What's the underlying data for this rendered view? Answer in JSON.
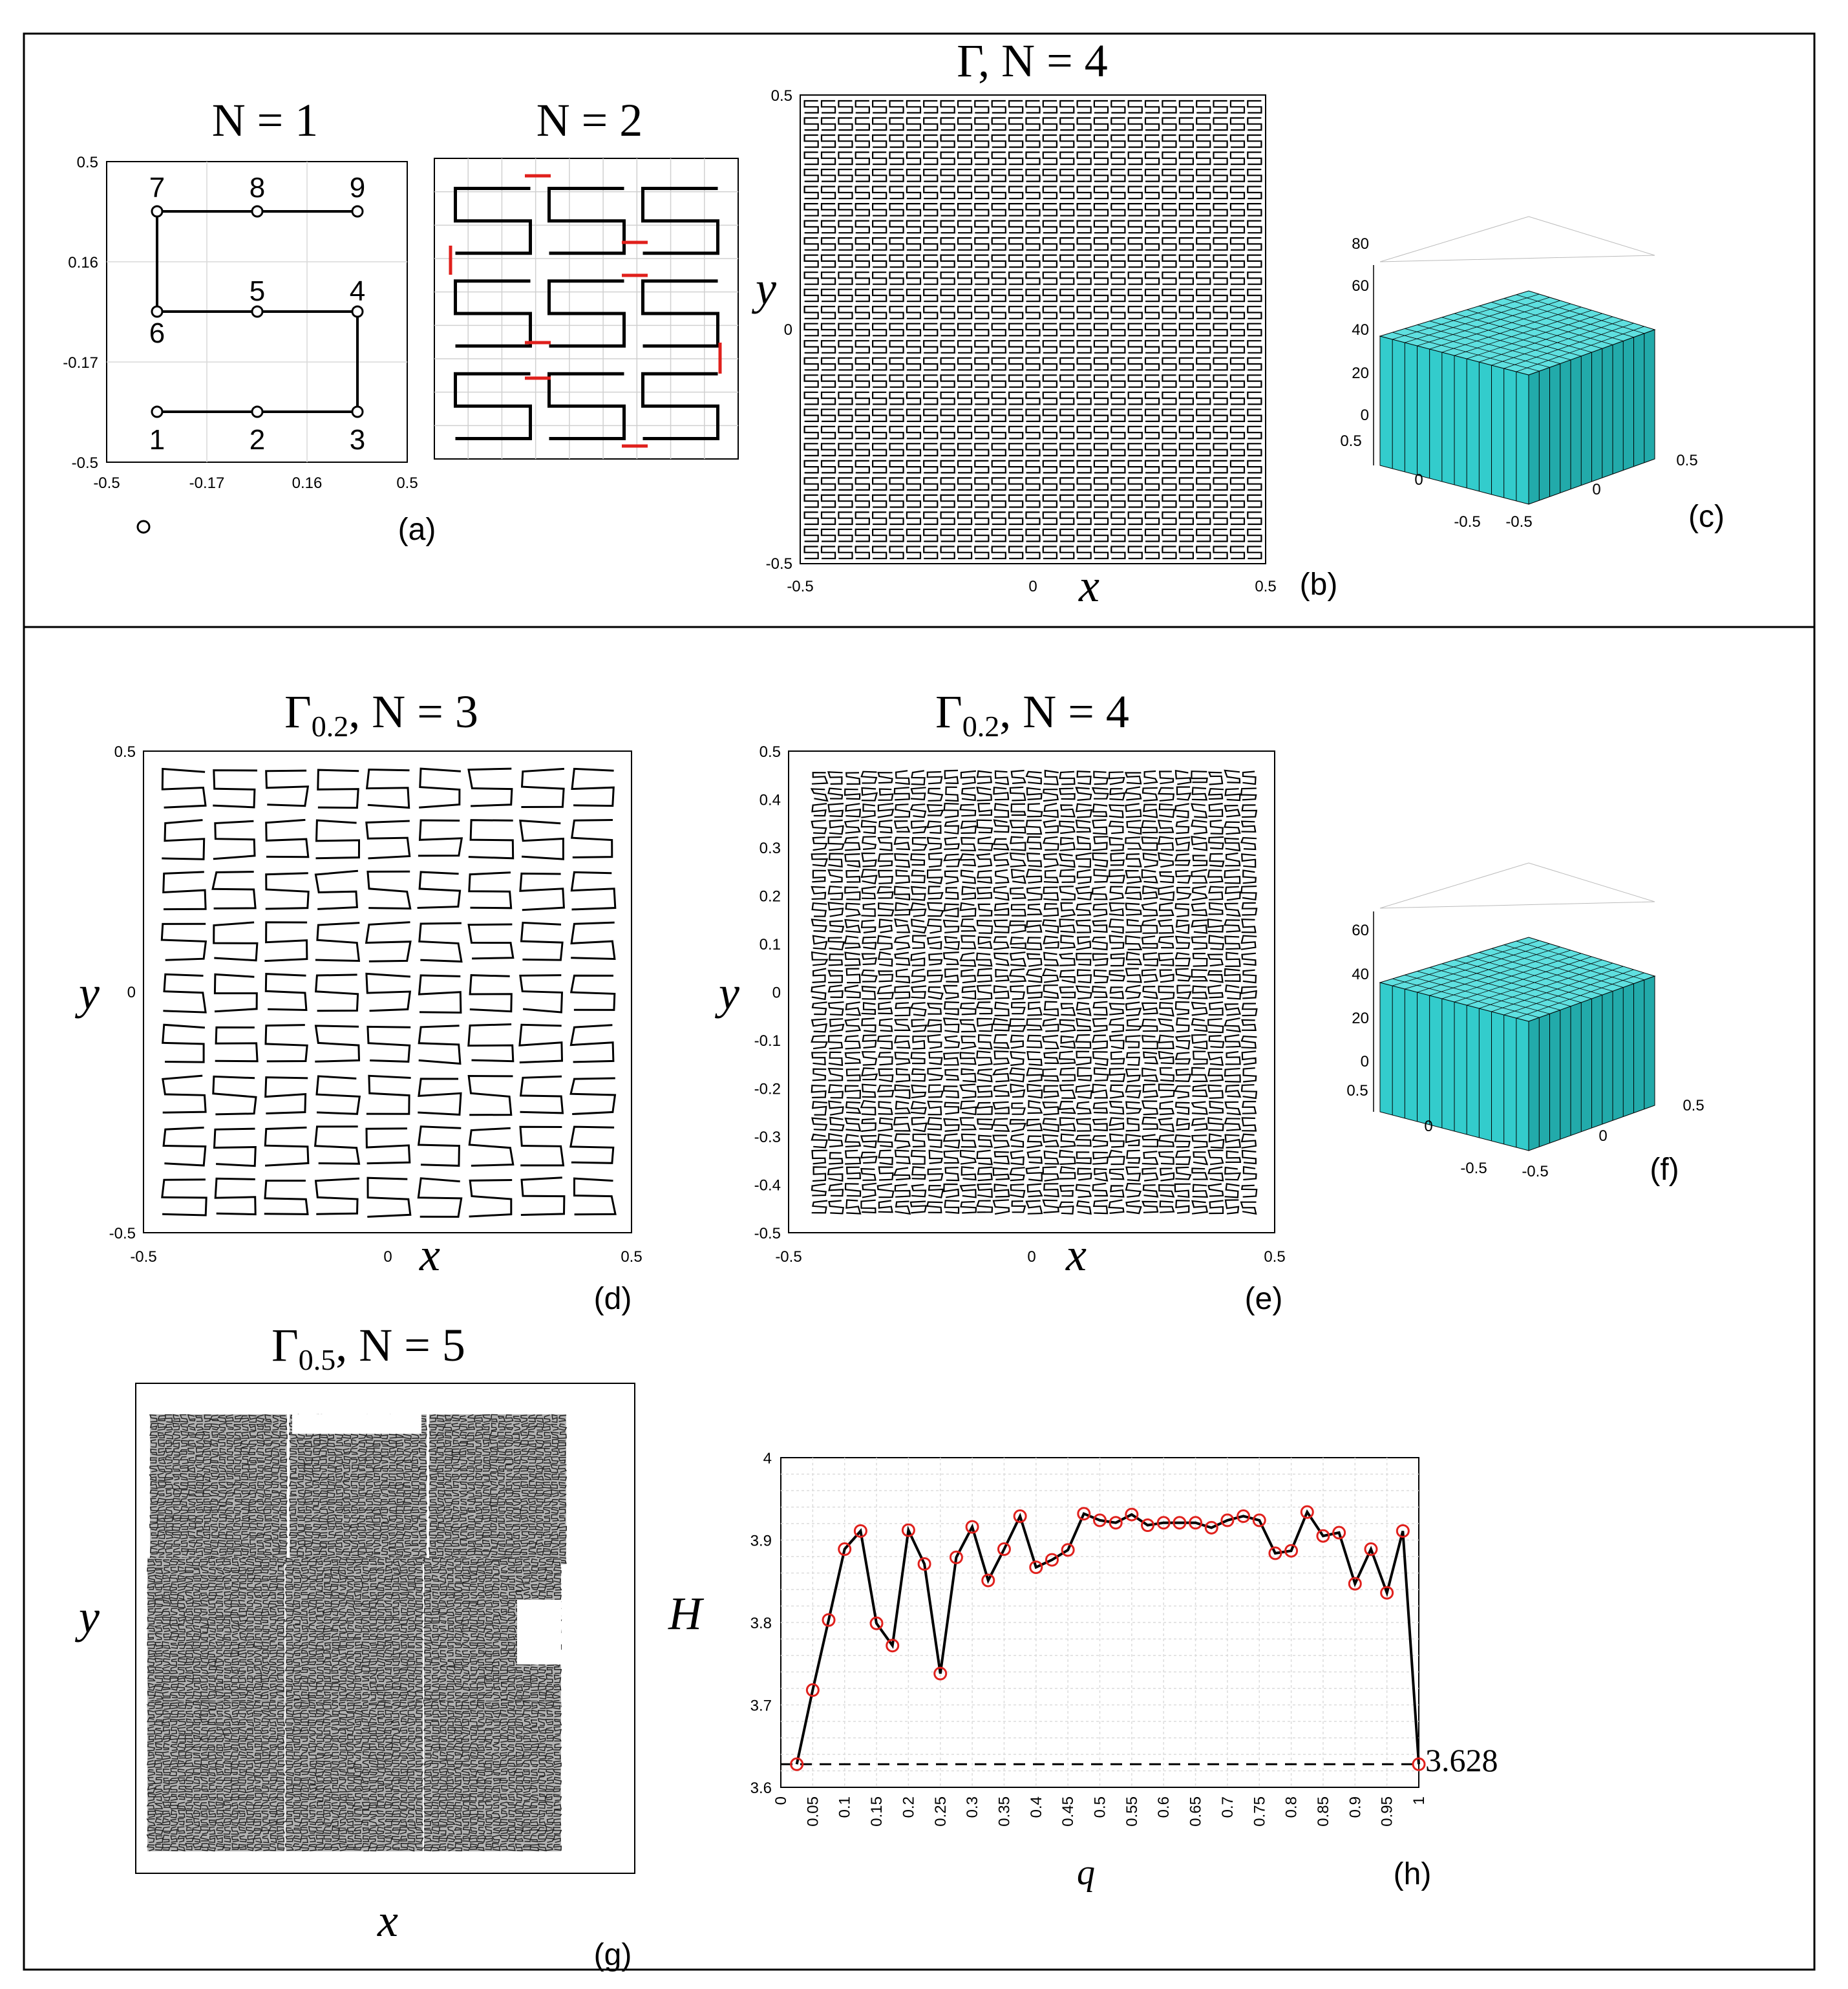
{
  "panels": {
    "a": {
      "label": "(a)",
      "title": "N = 1",
      "xticks": [
        "-0.5",
        "-0.17",
        "0.16",
        "0.5"
      ],
      "yticks": [
        "0.5",
        "0.16",
        "-0.17",
        "-0.5"
      ],
      "vertex_labels": [
        "1",
        "2",
        "3",
        "4",
        "5",
        "6",
        "7",
        "8",
        "9"
      ]
    },
    "a2": {
      "title": "N = 2",
      "accent": "#e0201c"
    },
    "b": {
      "label": "(b)",
      "title": "Γ, N = 4",
      "xlabel": "x",
      "ylabel": "y",
      "xticks": [
        "-0.5",
        "0",
        "0.5"
      ],
      "yticks": [
        "0.5",
        "0",
        "-0.5"
      ]
    },
    "c": {
      "label": "(c)",
      "zticks": [
        "80",
        "60",
        "40",
        "20",
        "0"
      ],
      "xyticks": [
        "0.5",
        "0",
        "-0.5",
        "-0.5",
        "0",
        "0.5"
      ],
      "bar_color": "#33cccc"
    },
    "d": {
      "label": "(d)",
      "title": "Γ0.2, N = 3",
      "xlabel": "x",
      "ylabel": "y",
      "xticks": [
        "-0.5",
        "0",
        "0.5"
      ],
      "yticks": [
        "0.5",
        "0",
        "-0.5"
      ]
    },
    "e": {
      "label": "(e)",
      "title": "Γ0.2, N = 4",
      "xlabel": "x",
      "ylabel": "y",
      "xticks": [
        "-0.5",
        "0",
        "0.5"
      ],
      "yticks": [
        "0.5",
        "0.4",
        "0.3",
        "0.2",
        "0.1",
        "0",
        "-0.1",
        "-0.2",
        "-0.3",
        "-0.4",
        "-0.5"
      ]
    },
    "f": {
      "label": "(f)",
      "zticks": [
        "60",
        "40",
        "20",
        "0"
      ],
      "xyticks": [
        "0.5",
        "0",
        "-0.5",
        "-0.5",
        "0",
        "0.5"
      ],
      "bar_color": "#33cccc"
    },
    "g": {
      "label": "(g)",
      "title": "Γ0.5, N = 5",
      "xlabel": "x",
      "ylabel": "y"
    },
    "h": {
      "label": "(h)"
    }
  },
  "chart_data": {
    "type": "line",
    "xlabel": "q",
    "ylabel": "H",
    "ylim": [
      3.6,
      4.0
    ],
    "xlim": [
      0,
      1
    ],
    "yticks": [
      "4",
      "3.9",
      "3.8",
      "3.7",
      "3.6"
    ],
    "xticks": [
      "0",
      "0.05",
      "0.1",
      "0.15",
      "0.2",
      "0.25",
      "0.3",
      "0.35",
      "0.4",
      "0.45",
      "0.5",
      "0.55",
      "0.6",
      "0.65",
      "0.7",
      "0.75",
      "0.8",
      "0.85",
      "0.9",
      "0.95",
      "1"
    ],
    "reference_line": {
      "y": 3.628,
      "label": "3.628",
      "style": "dashed"
    },
    "grid": true,
    "marker_color": "#e0201c",
    "series": [
      {
        "x": [
          0.025,
          0.05,
          0.075,
          0.1,
          0.125,
          0.15,
          0.175,
          0.2,
          0.225,
          0.25,
          0.275,
          0.3,
          0.325,
          0.35,
          0.375,
          0.4,
          0.425,
          0.45,
          0.475,
          0.5,
          0.525,
          0.55,
          0.575,
          0.6,
          0.625,
          0.65,
          0.675,
          0.7,
          0.725,
          0.75,
          0.775,
          0.8,
          0.825,
          0.85,
          0.875,
          0.9,
          0.925,
          0.95,
          0.975,
          1.0
        ],
        "values": [
          3.628,
          3.718,
          3.803,
          3.889,
          3.911,
          3.799,
          3.772,
          3.912,
          3.871,
          3.738,
          3.879,
          3.916,
          3.851,
          3.889,
          3.929,
          3.867,
          3.876,
          3.888,
          3.932,
          3.924,
          3.921,
          3.931,
          3.918,
          3.921,
          3.921,
          3.921,
          3.915,
          3.924,
          3.929,
          3.924,
          3.884,
          3.887,
          3.934,
          3.905,
          3.909,
          3.847,
          3.889,
          3.836,
          3.911,
          3.628
        ]
      }
    ]
  }
}
